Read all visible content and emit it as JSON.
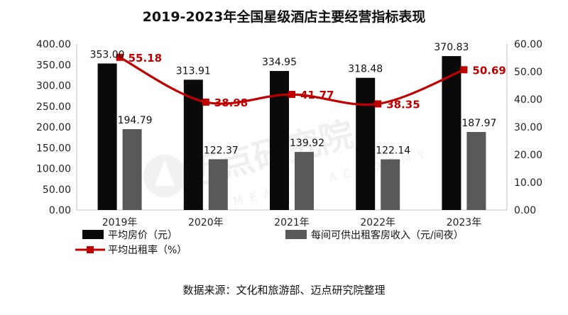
{
  "chart_data": {
    "type": "bar",
    "title": "2019-2023年全国星级酒店主要经营指标表现",
    "categories": [
      "2019年",
      "2020年",
      "2021年",
      "2022年",
      "2023年"
    ],
    "series": [
      {
        "name": "平均房价（元）",
        "axis": "left",
        "type": "bar",
        "color": "#0a0a0a",
        "values": [
          353.0,
          313.91,
          334.95,
          318.48,
          370.83
        ],
        "labels": [
          "353.00",
          "313.91",
          "334.95",
          "318.48",
          "370.83"
        ]
      },
      {
        "name": "每间可供出租客房收入（元/间夜）",
        "axis": "left",
        "type": "bar",
        "color": "#595959",
        "values": [
          194.79,
          122.37,
          139.92,
          122.14,
          187.97
        ],
        "labels": [
          "194.79",
          "122.37",
          "139.92",
          "122.14",
          "187.97"
        ]
      },
      {
        "name": "平均出租率（%）",
        "axis": "right",
        "type": "line",
        "color": "#c00000",
        "values": [
          55.18,
          38.98,
          41.77,
          38.35,
          50.69
        ],
        "labels": [
          "55.18",
          "38.98",
          "41.77",
          "38.35",
          "50.69"
        ]
      }
    ],
    "left_axis": {
      "ylim": [
        0,
        400
      ],
      "ticks": [
        "0.00",
        "50.00",
        "100.00",
        "150.00",
        "200.00",
        "250.00",
        "300.00",
        "350.00",
        "400.00"
      ]
    },
    "right_axis": {
      "ylim": [
        0,
        60
      ],
      "ticks": [
        "0.00",
        "10.00",
        "20.00",
        "30.00",
        "40.00",
        "50.00",
        "60.00"
      ]
    },
    "grid": false,
    "legend": "bottom",
    "source": "数据来源：文化和旅游部、迈点研究院整理"
  },
  "watermark": {
    "text": "迈点研究院",
    "subtext": "MEADIN ACADEMY"
  }
}
